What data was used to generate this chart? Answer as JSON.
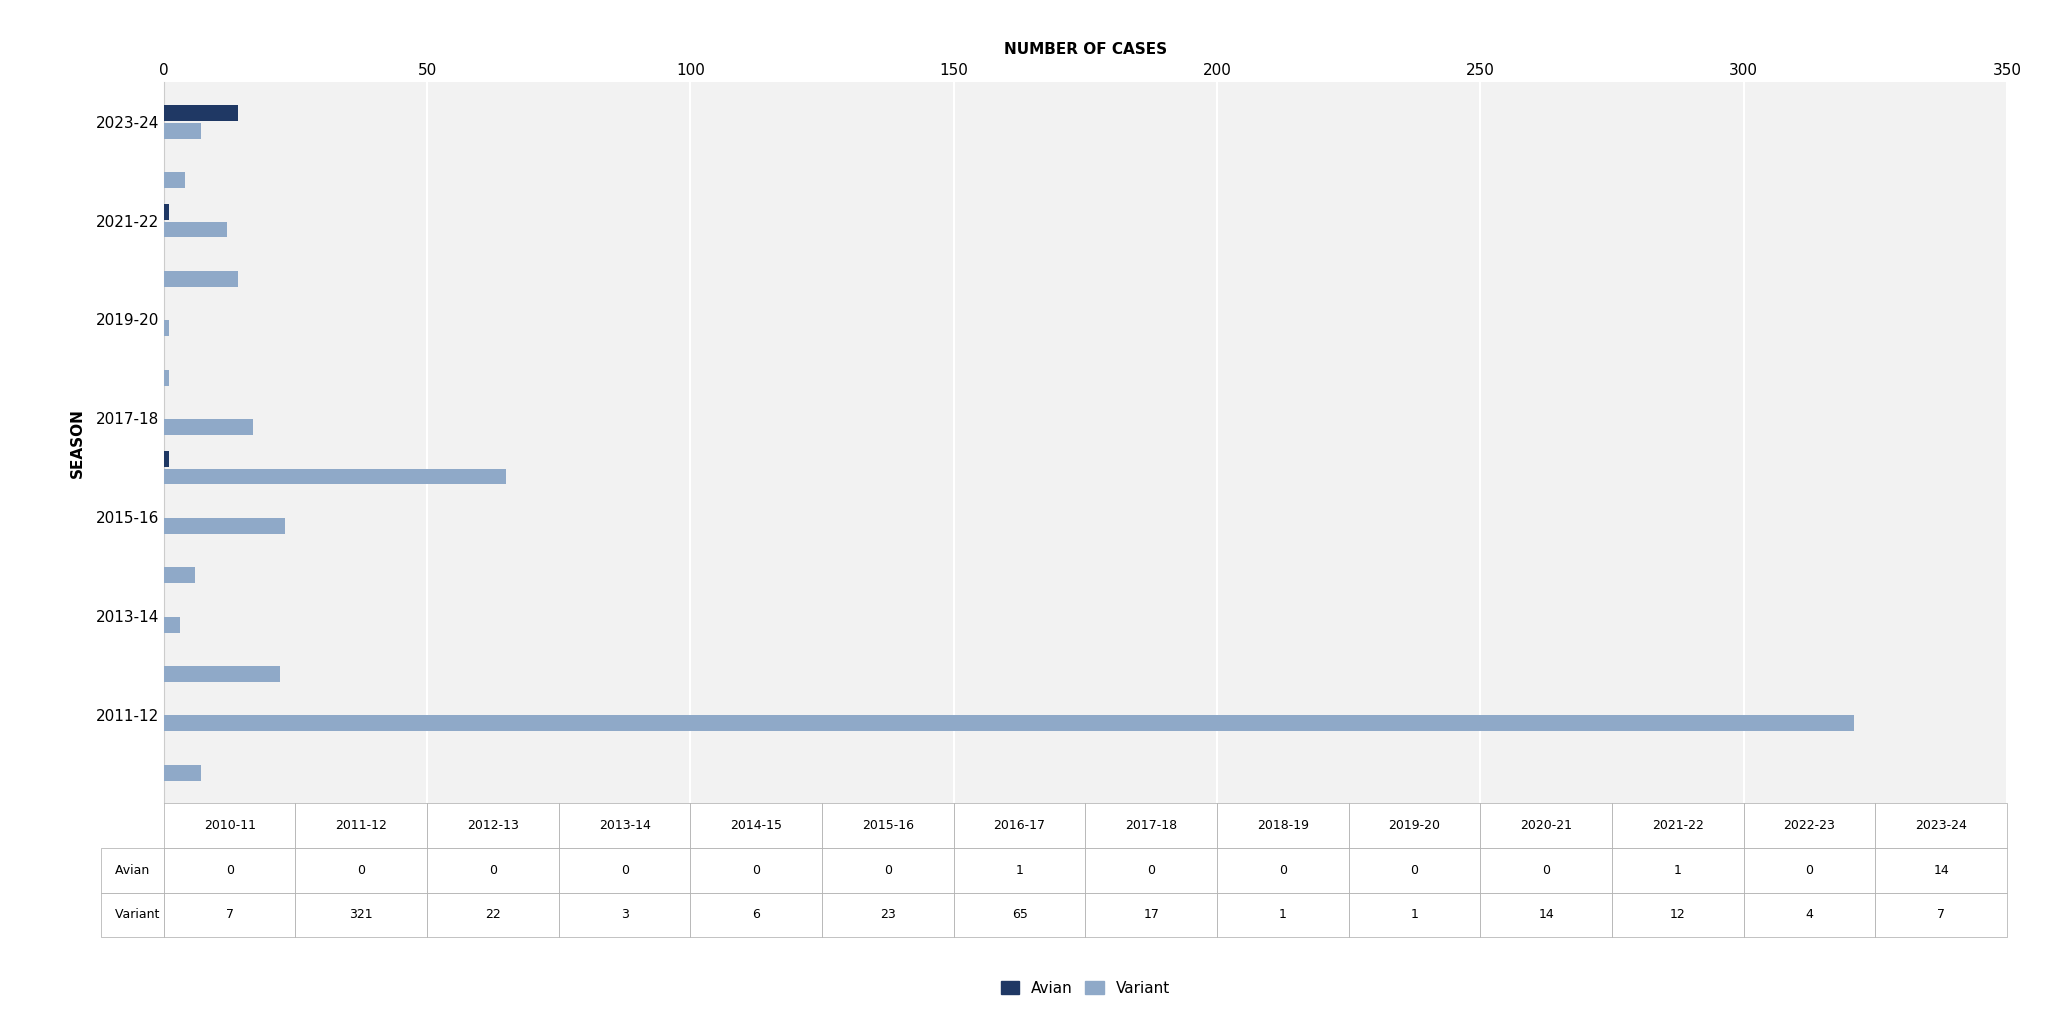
{
  "seasons": [
    "2010-11",
    "2011-12",
    "2012-13",
    "2013-14",
    "2014-15",
    "2015-16",
    "2016-17",
    "2017-18",
    "2018-19",
    "2019-20",
    "2020-21",
    "2021-22",
    "2022-23",
    "2023-24"
  ],
  "avian": [
    0,
    0,
    0,
    0,
    0,
    0,
    1,
    0,
    0,
    0,
    0,
    1,
    0,
    14
  ],
  "variant": [
    7,
    321,
    22,
    3,
    6,
    23,
    65,
    17,
    1,
    1,
    14,
    12,
    4,
    7
  ],
  "y_tick_labels": [
    "2011-12",
    "2013-14",
    "2015-16",
    "2017-18",
    "2019-20",
    "2021-22",
    "2023-24"
  ],
  "avian_color": "#1F3864",
  "variant_color": "#8FA9C8",
  "xlim": [
    0,
    350
  ],
  "xticks": [
    0,
    50,
    100,
    150,
    200,
    250,
    300,
    350
  ],
  "xlabel": "NUMBER OF CASES",
  "ylabel": "SEASON",
  "chart_bg": "#F2F2F2",
  "grid_color": "#FFFFFF",
  "bar_height": 0.32,
  "bar_gap": 0.04,
  "xlabel_fontsize": 11,
  "ylabel_fontsize": 11,
  "tick_fontsize": 11,
  "table_fontsize": 9,
  "legend_fontsize": 11
}
